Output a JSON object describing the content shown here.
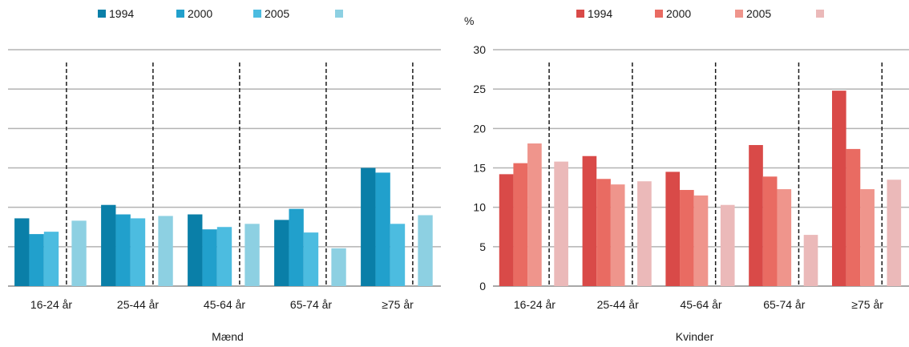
{
  "chart_data": [
    {
      "type": "bar",
      "title": "",
      "subtitle": "",
      "xlabel": "Mænd",
      "ylabel": "",
      "ylim": [
        0,
        30
      ],
      "yticks": [
        0,
        5,
        10,
        15,
        20,
        25,
        30
      ],
      "show_ytick_labels": false,
      "grid": true,
      "legend_position": "top",
      "categories": [
        "16-24 år",
        "25-44 år",
        "45-64 år",
        "65-74 år",
        "≥75 år"
      ],
      "series": [
        {
          "name": "1994",
          "color": "#0a7fa8",
          "values": [
            8.6,
            10.3,
            9.1,
            8.4,
            15.0
          ]
        },
        {
          "name": "2000",
          "color": "#21a0cc",
          "values": [
            6.6,
            9.1,
            7.2,
            9.8,
            14.4
          ]
        },
        {
          "name": "2005",
          "color": "#4cbce0",
          "values": [
            6.9,
            8.6,
            7.5,
            6.8,
            7.9
          ]
        },
        {
          "name": "",
          "color": "#8dd0e2",
          "values": [
            8.3,
            8.9,
            7.9,
            4.8,
            9.0
          ]
        }
      ]
    },
    {
      "type": "bar",
      "title": "",
      "subtitle": "",
      "xlabel": "Kvinder",
      "ylabel": "%",
      "ylim": [
        0,
        30
      ],
      "yticks": [
        0,
        5,
        10,
        15,
        20,
        25,
        30
      ],
      "show_ytick_labels": true,
      "grid": true,
      "legend_position": "top",
      "categories": [
        "16-24 år",
        "25-44 år",
        "45-64 år",
        "65-74 år",
        "≥75 år"
      ],
      "series": [
        {
          "name": "1994",
          "color": "#d94a48",
          "values": [
            14.2,
            16.5,
            14.5,
            17.9,
            24.8
          ]
        },
        {
          "name": "2000",
          "color": "#e96b62",
          "values": [
            15.6,
            13.6,
            12.2,
            13.9,
            17.4
          ]
        },
        {
          "name": "2005",
          "color": "#ef958c",
          "values": [
            18.1,
            12.9,
            11.5,
            12.3,
            12.3
          ]
        },
        {
          "name": "",
          "color": "#ebb9b9",
          "values": [
            15.8,
            13.3,
            10.3,
            6.5,
            13.5
          ]
        }
      ]
    }
  ]
}
